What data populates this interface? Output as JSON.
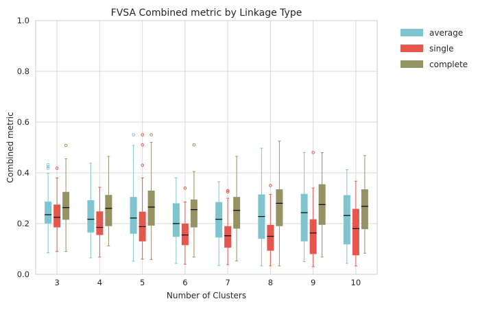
{
  "chart_data": {
    "type": "box",
    "title": "FVSA Combined metric by Linkage Type",
    "xlabel": "Number of Clusters",
    "ylabel": "Combined metric",
    "ylim": [
      0,
      1
    ],
    "yticks": [
      "0.0",
      "0.2",
      "0.4",
      "0.6",
      "0.8",
      "1.0"
    ],
    "categories": [
      "3",
      "4",
      "5",
      "6",
      "7",
      "8",
      "9",
      "10"
    ],
    "grid": true,
    "legend_position": "outside-top-right",
    "series": [
      {
        "name": "average",
        "color": "#7ec5d0",
        "boxes": [
          {
            "whislo": 0.085,
            "q1": 0.2,
            "med": 0.235,
            "q3": 0.287,
            "whishi": 0.398,
            "fliers": [
              0.418,
              0.424,
              0.432
            ]
          },
          {
            "whislo": 0.065,
            "q1": 0.165,
            "med": 0.217,
            "q3": 0.292,
            "whishi": 0.438,
            "fliers": []
          },
          {
            "whislo": 0.052,
            "q1": 0.16,
            "med": 0.222,
            "q3": 0.305,
            "whishi": 0.508,
            "fliers": [
              0.55
            ]
          },
          {
            "whislo": 0.043,
            "q1": 0.148,
            "med": 0.2,
            "q3": 0.28,
            "whishi": 0.38,
            "fliers": []
          },
          {
            "whislo": 0.035,
            "q1": 0.145,
            "med": 0.217,
            "q3": 0.285,
            "whishi": 0.365,
            "fliers": []
          },
          {
            "whislo": 0.033,
            "q1": 0.14,
            "med": 0.228,
            "q3": 0.315,
            "whishi": 0.497,
            "fliers": []
          },
          {
            "whislo": 0.05,
            "q1": 0.13,
            "med": 0.243,
            "q3": 0.317,
            "whishi": 0.48,
            "fliers": []
          },
          {
            "whislo": 0.043,
            "q1": 0.118,
            "med": 0.232,
            "q3": 0.312,
            "whishi": 0.412,
            "fliers": []
          }
        ]
      },
      {
        "name": "single",
        "color": "#e5574c",
        "boxes": [
          {
            "whislo": 0.09,
            "q1": 0.185,
            "med": 0.225,
            "q3": 0.275,
            "whishi": 0.38,
            "fliers": [
              0.418
            ]
          },
          {
            "whislo": 0.068,
            "q1": 0.155,
            "med": 0.185,
            "q3": 0.248,
            "whishi": 0.343,
            "fliers": []
          },
          {
            "whislo": 0.06,
            "q1": 0.13,
            "med": 0.188,
            "q3": 0.247,
            "whishi": 0.38,
            "fliers": [
              0.43,
              0.51,
              0.55
            ]
          },
          {
            "whislo": 0.04,
            "q1": 0.115,
            "med": 0.155,
            "q3": 0.2,
            "whishi": 0.285,
            "fliers": [
              0.34
            ]
          },
          {
            "whislo": 0.038,
            "q1": 0.105,
            "med": 0.152,
            "q3": 0.19,
            "whishi": 0.3,
            "fliers": [
              0.325,
              0.33
            ]
          },
          {
            "whislo": 0.033,
            "q1": 0.093,
            "med": 0.15,
            "q3": 0.195,
            "whishi": 0.315,
            "fliers": [
              0.35
            ]
          },
          {
            "whislo": 0.03,
            "q1": 0.08,
            "med": 0.163,
            "q3": 0.217,
            "whishi": 0.34,
            "fliers": [
              0.48
            ]
          },
          {
            "whislo": 0.033,
            "q1": 0.075,
            "med": 0.18,
            "q3": 0.258,
            "whishi": 0.367,
            "fliers": []
          }
        ]
      },
      {
        "name": "complete",
        "color": "#959264",
        "boxes": [
          {
            "whislo": 0.09,
            "q1": 0.215,
            "med": 0.263,
            "q3": 0.325,
            "whishi": 0.455,
            "fliers": [
              0.508
            ]
          },
          {
            "whislo": 0.112,
            "q1": 0.19,
            "med": 0.26,
            "q3": 0.313,
            "whishi": 0.465,
            "fliers": []
          },
          {
            "whislo": 0.058,
            "q1": 0.192,
            "med": 0.265,
            "q3": 0.33,
            "whishi": 0.52,
            "fliers": [
              0.55
            ]
          },
          {
            "whislo": 0.068,
            "q1": 0.185,
            "med": 0.255,
            "q3": 0.295,
            "whishi": 0.405,
            "fliers": [
              0.51
            ]
          },
          {
            "whislo": 0.053,
            "q1": 0.18,
            "med": 0.252,
            "q3": 0.305,
            "whishi": 0.465,
            "fliers": []
          },
          {
            "whislo": 0.033,
            "q1": 0.19,
            "med": 0.28,
            "q3": 0.335,
            "whishi": 0.525,
            "fliers": []
          },
          {
            "whislo": 0.068,
            "q1": 0.195,
            "med": 0.275,
            "q3": 0.355,
            "whishi": 0.48,
            "fliers": []
          },
          {
            "whislo": 0.083,
            "q1": 0.178,
            "med": 0.268,
            "q3": 0.335,
            "whishi": 0.468,
            "fliers": []
          }
        ]
      }
    ]
  }
}
